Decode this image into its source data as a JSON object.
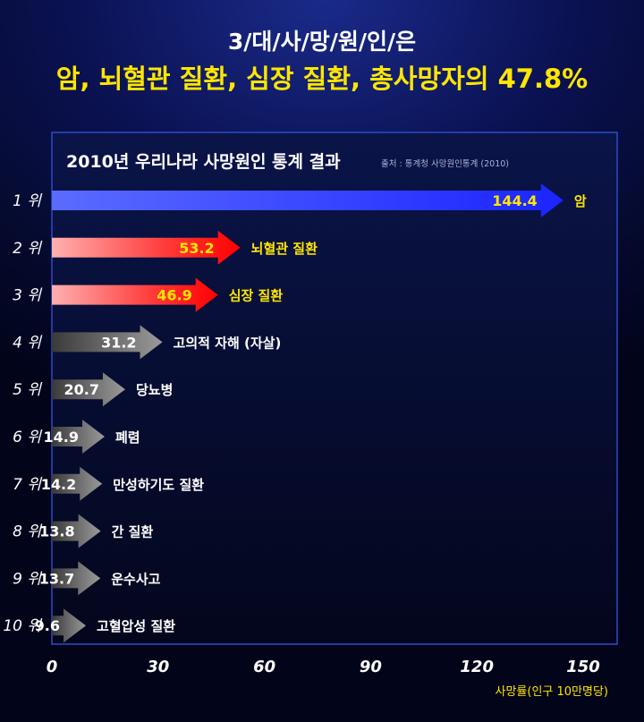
{
  "header": {
    "line1": "3/대/사/망/원/인/은",
    "line2": "암, 뇌혈관 질환, 심장 질환, 총사망자의 47.8%"
  },
  "panel": {
    "title": "2010년 우리나라 사망원인 통계 결과",
    "source": "출처 : 통계청 사망원인통계 (2010)"
  },
  "colors": {
    "rank1": "#2f3cff",
    "top3": "#ff1a1a",
    "others": "#6d6d6d",
    "highlight_label": "#ffe600"
  },
  "chart_data": {
    "type": "bar",
    "orientation": "horizontal",
    "ranks": [
      "1 위",
      "2 위",
      "3 위",
      "4 위",
      "5 위",
      "6 위",
      "7 위",
      "8 위",
      "9 위",
      "10 위"
    ],
    "categories": [
      "암",
      "뇌혈관 질환",
      "심장 질환",
      "고의적 자해 (자살)",
      "당뇨병",
      "폐렴",
      "만성하기도 질환",
      "간 질환",
      "운수사고",
      "고혈압성 질환"
    ],
    "values": [
      144.4,
      53.2,
      46.9,
      31.2,
      20.7,
      14.9,
      14.2,
      13.8,
      13.7,
      9.6
    ],
    "value_labels": [
      "144.4",
      "53.2",
      "46.9",
      "31.2",
      "20.7",
      "14.9",
      "14.2",
      "13.8",
      "13.7",
      "9.6"
    ],
    "xlim": [
      0,
      150
    ],
    "xticks": [
      "0",
      "30",
      "60",
      "90",
      "120",
      "150"
    ],
    "xlabel": "사망률(인구 10만명당)",
    "title": "2010년 우리나라 사망원인 통계 결과",
    "grid": false,
    "legend": "none"
  }
}
